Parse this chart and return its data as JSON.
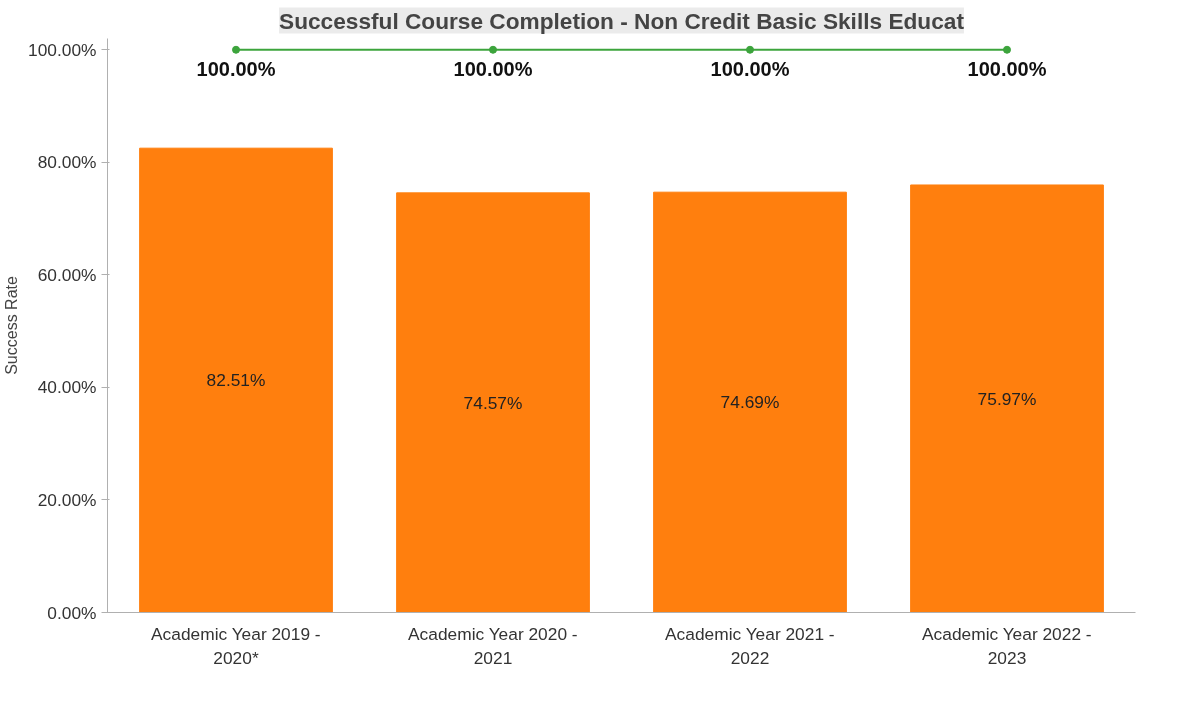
{
  "chart_data": {
    "type": "bar",
    "title": "Successful Course Completion - Non Credit Basic Skills Educat",
    "ylabel": "Success Rate",
    "categories": [
      "Academic Year 2019 - 2020*",
      "Academic Year 2020 - 2021",
      "Academic Year 2021 - 2022",
      "Academic Year 2022 - 2023"
    ],
    "series": [
      {
        "color": "#ff7f0e",
        "values": [
          82.51,
          74.57,
          74.69,
          75.97
        ],
        "value_labels": [
          "82.51%",
          "74.57%",
          "74.69%",
          "75.97%"
        ]
      },
      {
        "type": "line",
        "color": "#3ca43c",
        "marker": "circle",
        "values": [
          100,
          100,
          100,
          100
        ],
        "value_labels": [
          "100.00%",
          "100.00%",
          "100.00%",
          "100.00%"
        ]
      }
    ],
    "ylim": [
      0,
      102
    ],
    "yticks": [
      {
        "value": 0,
        "label": "0.00%"
      },
      {
        "value": 20,
        "label": "20.00%"
      },
      {
        "value": 40,
        "label": "40.00%"
      },
      {
        "value": 60,
        "label": "60.00%"
      },
      {
        "value": 80,
        "label": "80.00%"
      },
      {
        "value": 100,
        "label": "100.00%"
      }
    ],
    "grid": false
  }
}
